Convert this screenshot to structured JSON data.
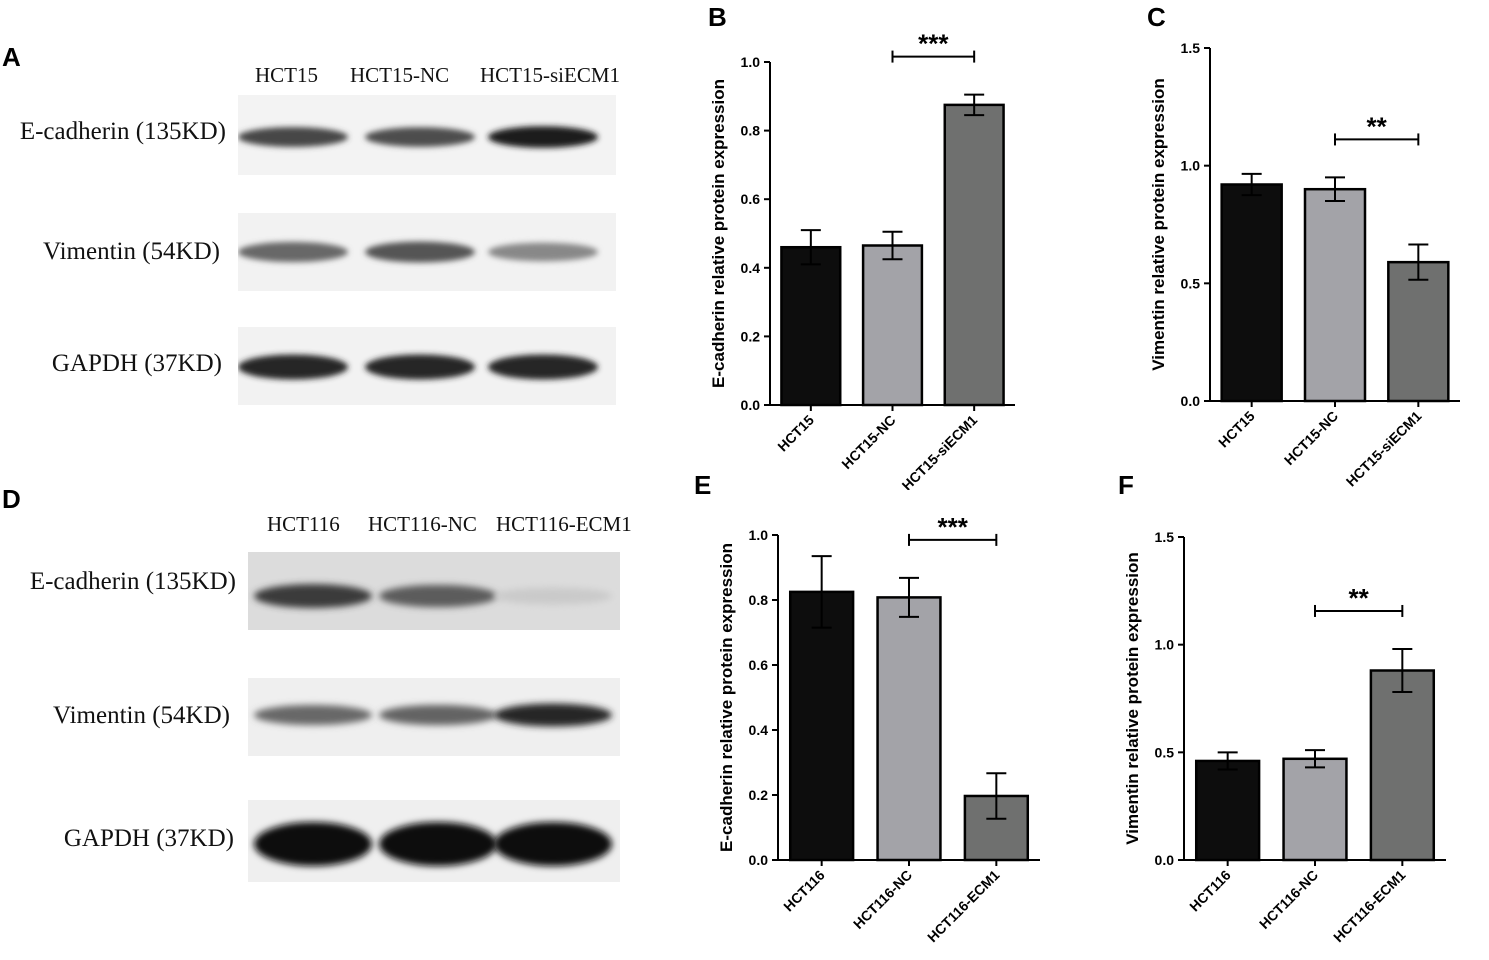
{
  "panel_letters": {
    "a": "A",
    "b": "B",
    "c": "C",
    "d": "D",
    "e": "E",
    "f": "F"
  },
  "blot_a": {
    "columns": [
      "HCT15",
      "HCT15-NC",
      "HCT15-siECM1"
    ],
    "rows": [
      "E-cadherin (135KD)",
      "Vimentin (54KD)",
      "GAPDH (37KD)"
    ],
    "band_intensity": [
      [
        0.75,
        0.72,
        0.95
      ],
      [
        0.6,
        0.68,
        0.45
      ],
      [
        0.9,
        0.9,
        0.9
      ]
    ]
  },
  "blot_d": {
    "columns": [
      "HCT116",
      "HCT116-NC",
      "HCT116-ECM1"
    ],
    "rows": [
      "E-cadherin (135KD)",
      "Vimentin (54KD)",
      "GAPDH (37KD)"
    ],
    "band_intensity": [
      [
        0.8,
        0.65,
        0.15
      ],
      [
        0.6,
        0.62,
        0.9
      ],
      [
        1.0,
        1.0,
        1.0
      ]
    ]
  },
  "colors": {
    "bar1": "#0d0d0d",
    "bar2": "#a3a3a8",
    "bar3": "#6f706f"
  },
  "chart_data": [
    {
      "type": "bar",
      "categories": [
        "HCT15",
        "HCT15-NC",
        "HCT15-siECM1"
      ],
      "values": [
        0.46,
        0.465,
        0.875
      ],
      "errors": [
        0.05,
        0.04,
        0.03
      ],
      "ylabel": "E-cadherin relative protein expression",
      "ylim": [
        0,
        1.0
      ],
      "yticks": [
        "0.0",
        "0.2",
        "0.4",
        "0.6",
        "0.8",
        "1.0"
      ],
      "significance": {
        "from": 1,
        "to": 2,
        "label": "***"
      }
    },
    {
      "type": "bar",
      "categories": [
        "HCT15",
        "HCT15-NC",
        "HCT15-siECM1"
      ],
      "values": [
        0.92,
        0.9,
        0.59
      ],
      "errors": [
        0.045,
        0.05,
        0.075
      ],
      "ylabel": "Vimentin relative protein expression",
      "ylim": [
        0,
        1.5
      ],
      "yticks": [
        "0.0",
        "0.5",
        "1.0",
        "1.5"
      ],
      "significance": {
        "from": 1,
        "to": 2,
        "label": "**"
      }
    },
    {
      "type": "bar",
      "categories": [
        "HCT116",
        "HCT116-NC",
        "HCT116-ECM1"
      ],
      "values": [
        0.825,
        0.808,
        0.197
      ],
      "errors": [
        0.11,
        0.06,
        0.07
      ],
      "ylabel": "E-cadherin relative protein expression",
      "ylim": [
        0,
        1.0
      ],
      "yticks": [
        "0.0",
        "0.2",
        "0.4",
        "0.6",
        "0.8",
        "1.0"
      ],
      "significance": {
        "from": 1,
        "to": 2,
        "label": "***"
      }
    },
    {
      "type": "bar",
      "categories": [
        "HCT116",
        "HCT116-NC",
        "HCT116-ECM1"
      ],
      "values": [
        0.46,
        0.47,
        0.88
      ],
      "errors": [
        0.04,
        0.04,
        0.1
      ],
      "ylabel": "Vimentin relative protein expression",
      "ylim": [
        0,
        1.5
      ],
      "yticks": [
        "0.0",
        "0.5",
        "1.0",
        "1.5"
      ],
      "significance": {
        "from": 1,
        "to": 2,
        "label": "**"
      }
    }
  ]
}
